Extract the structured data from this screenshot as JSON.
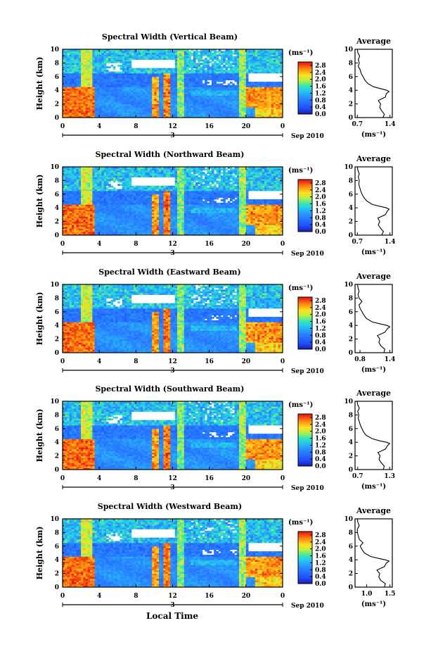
{
  "figure": {
    "x_axis_label": "Local Time"
  },
  "chart_data": [
    {
      "type": "heatmap",
      "title": "Spectral Width (Vertical Beam)",
      "ylabel": "Height (km)",
      "xlim": [
        0,
        24
      ],
      "ylim": [
        0,
        10
      ],
      "x_ticks": [
        "0",
        "4",
        "8",
        "12",
        "16",
        "20",
        "0"
      ],
      "y_ticks": [
        "0",
        "2",
        "4",
        "6",
        "8",
        "10"
      ],
      "date_marker": "3",
      "date_label": "Sep 2010",
      "colorbar": {
        "unit": "(ms⁻¹)",
        "ticks": [
          "0.0",
          "0.4",
          "0.8",
          "1.2",
          "1.6",
          "2.0",
          "2.4",
          "2.8"
        ],
        "range": [
          0,
          3.0
        ]
      },
      "profile": {
        "title": "Average",
        "xlabel": "(ms⁻¹)",
        "x_ticks": [
          "0.7",
          "1.4"
        ],
        "xlim": [
          0.65,
          1.45
        ],
        "height": [
          0,
          0.5,
          1,
          1.5,
          2,
          2.5,
          3,
          3.5,
          3.8,
          4,
          4.2,
          4.5,
          5,
          5.5,
          6,
          6.5,
          7,
          7.5,
          8,
          8.5,
          9,
          9.5,
          10
        ],
        "value": [
          1.25,
          1.28,
          1.22,
          1.18,
          1.2,
          1.15,
          1.3,
          1.32,
          1.38,
          1.33,
          1.22,
          1.05,
          0.92,
          0.86,
          0.82,
          0.78,
          0.76,
          0.72,
          0.74,
          0.72,
          0.75,
          0.71,
          0.7
        ]
      }
    },
    {
      "type": "heatmap",
      "title": "Spectral Width (Northward Beam)",
      "ylabel": "Height (km)",
      "xlim": [
        0,
        24
      ],
      "ylim": [
        0,
        10
      ],
      "x_ticks": [
        "0",
        "4",
        "8",
        "12",
        "16",
        "20",
        "0"
      ],
      "y_ticks": [
        "0",
        "2",
        "4",
        "6",
        "8",
        "10"
      ],
      "date_marker": "3",
      "date_label": "Sep 2010",
      "colorbar": {
        "unit": "(ms⁻¹)",
        "ticks": [
          "0.0",
          "0.4",
          "0.8",
          "1.2",
          "1.6",
          "2.0",
          "2.4",
          "2.8"
        ],
        "range": [
          0,
          3.0
        ]
      },
      "profile": {
        "title": "Average",
        "xlabel": "(ms⁻¹)",
        "x_ticks": [
          "0.7",
          "1.4"
        ],
        "xlim": [
          0.65,
          1.45
        ],
        "height": [
          0,
          0.5,
          1,
          1.5,
          2,
          2.5,
          3,
          3.5,
          3.8,
          4,
          4.2,
          4.5,
          5,
          5.5,
          6,
          6.5,
          7,
          7.5,
          8,
          8.5,
          9,
          9.5,
          10
        ],
        "value": [
          1.22,
          1.26,
          1.2,
          1.15,
          1.18,
          1.14,
          1.3,
          1.34,
          1.38,
          1.32,
          1.2,
          1.02,
          0.9,
          0.84,
          0.8,
          0.77,
          0.75,
          0.73,
          0.74,
          0.72,
          0.74,
          0.71,
          0.7
        ]
      }
    },
    {
      "type": "heatmap",
      "title": "Spectral Width (Eastward Beam)",
      "ylabel": "Height (km)",
      "xlim": [
        0,
        24
      ],
      "ylim": [
        0,
        10
      ],
      "x_ticks": [
        "0",
        "4",
        "8",
        "12",
        "16",
        "20",
        "0"
      ],
      "y_ticks": [
        "0",
        "2",
        "4",
        "6",
        "8",
        "10"
      ],
      "date_marker": "3",
      "date_label": "Sep 2010",
      "colorbar": {
        "unit": "(ms⁻¹)",
        "ticks": [
          "0.0",
          "0.4",
          "0.8",
          "1.2",
          "1.6",
          "2.0",
          "2.4",
          "2.8"
        ],
        "range": [
          0,
          3.0
        ]
      },
      "profile": {
        "title": "Average",
        "xlabel": "(ms⁻¹)",
        "x_ticks": [
          "0.8",
          "1.4"
        ],
        "xlim": [
          0.7,
          1.45
        ],
        "height": [
          0,
          0.5,
          1,
          1.5,
          2,
          2.5,
          3,
          3.5,
          3.8,
          4,
          4.2,
          4.5,
          5,
          5.5,
          6,
          6.5,
          7,
          7.5,
          8,
          8.5,
          9,
          9.5,
          10
        ],
        "value": [
          1.28,
          1.3,
          1.22,
          1.18,
          1.2,
          1.15,
          1.3,
          1.35,
          1.4,
          1.34,
          1.22,
          1.05,
          0.93,
          0.88,
          0.84,
          0.8,
          0.78,
          0.84,
          0.78,
          0.76,
          0.78,
          0.76,
          0.75
        ]
      }
    },
    {
      "type": "heatmap",
      "title": "Spectral Width (Southward Beam)",
      "ylabel": "Height (km)",
      "xlim": [
        0,
        24
      ],
      "ylim": [
        0,
        10
      ],
      "x_ticks": [
        "0",
        "4",
        "8",
        "12",
        "16",
        "20",
        "0"
      ],
      "y_ticks": [
        "0",
        "2",
        "4",
        "6",
        "8",
        "10"
      ],
      "date_marker": "3",
      "date_label": "Sep 2010",
      "colorbar": {
        "unit": "(ms⁻¹)",
        "ticks": [
          "0.0",
          "0.4",
          "0.8",
          "1.2",
          "1.6",
          "2.0",
          "2.4",
          "2.8"
        ],
        "range": [
          0,
          3.0
        ]
      },
      "profile": {
        "title": "Average",
        "xlabel": "(ms⁻¹)",
        "x_ticks": [
          "0.7",
          "1.3"
        ],
        "xlim": [
          0.65,
          1.35
        ],
        "height": [
          0,
          0.5,
          1,
          1.5,
          2,
          2.5,
          3,
          3.5,
          3.8,
          4,
          4.2,
          4.5,
          5,
          5.5,
          6,
          6.5,
          7,
          7.5,
          8,
          8.5,
          9,
          9.5,
          10
        ],
        "value": [
          1.18,
          1.2,
          1.14,
          1.1,
          1.12,
          1.08,
          1.22,
          1.26,
          1.3,
          1.24,
          1.12,
          0.98,
          0.86,
          0.81,
          0.78,
          0.75,
          0.73,
          0.71,
          0.72,
          0.7,
          0.73,
          0.7,
          0.69
        ]
      }
    },
    {
      "type": "heatmap",
      "title": "Spectral Width (Westward Beam)",
      "ylabel": "Height (km)",
      "xlim": [
        0,
        24
      ],
      "ylim": [
        0,
        10
      ],
      "x_ticks": [
        "0",
        "4",
        "8",
        "12",
        "16",
        "20",
        "0"
      ],
      "y_ticks": [
        "0",
        "2",
        "4",
        "6",
        "8",
        "10"
      ],
      "date_marker": "3",
      "date_label": "Sep 2010",
      "colorbar": {
        "unit": "(ms⁻¹)",
        "ticks": [
          "0.0",
          "0.4",
          "0.8",
          "1.2",
          "1.6",
          "2.0",
          "2.4",
          "2.8"
        ],
        "range": [
          0,
          3.0
        ]
      },
      "profile": {
        "title": "Average",
        "xlabel": "(ms⁻¹)",
        "x_ticks": [
          "1.0",
          "1.5"
        ],
        "xlim": [
          0.75,
          1.55
        ],
        "height": [
          0,
          0.5,
          1,
          1.5,
          2,
          2.5,
          3,
          3.5,
          3.8,
          4,
          4.2,
          4.5,
          5,
          5.5,
          6,
          6.5,
          7,
          7.5,
          8,
          8.5,
          9,
          9.5,
          10
        ],
        "value": [
          1.38,
          1.4,
          1.3,
          1.26,
          1.28,
          1.22,
          1.38,
          1.42,
          1.48,
          1.4,
          1.26,
          1.08,
          0.95,
          0.9,
          0.86,
          0.92,
          0.84,
          0.82,
          0.8,
          0.8,
          0.84,
          0.81,
          0.8
        ]
      }
    }
  ]
}
